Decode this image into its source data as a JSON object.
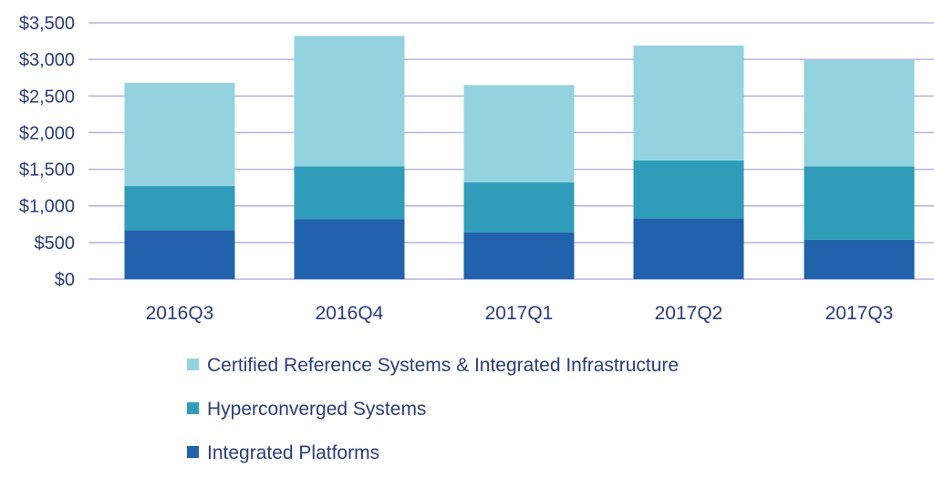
{
  "chart_data": {
    "type": "bar",
    "stacked": true,
    "categories": [
      "2016Q3",
      "2016Q4",
      "2017Q1",
      "2017Q2",
      "2017Q3"
    ],
    "series": [
      {
        "name": "Integrated Platforms",
        "values": [
          670,
          820,
          640,
          830,
          540
        ],
        "color": "#2162ad"
      },
      {
        "name": "Hyperconverged Systems",
        "values": [
          600,
          720,
          680,
          790,
          1000
        ],
        "color": "#2f9cb9"
      },
      {
        "name": "Certified Reference Systems & Integrated Infrastructure",
        "values": [
          1410,
          1780,
          1330,
          1570,
          1450
        ],
        "color": "#93d3e0"
      }
    ],
    "yticks": [
      "$0",
      "$500",
      "$1,000",
      "$1,500",
      "$2,000",
      "$2,500",
      "$3,000",
      "$3,500"
    ],
    "ylim": [
      0,
      3500
    ],
    "ytick_step": 500,
    "grid": true,
    "legend_order": [
      2,
      1,
      0
    ],
    "legend_position": "bottom"
  }
}
